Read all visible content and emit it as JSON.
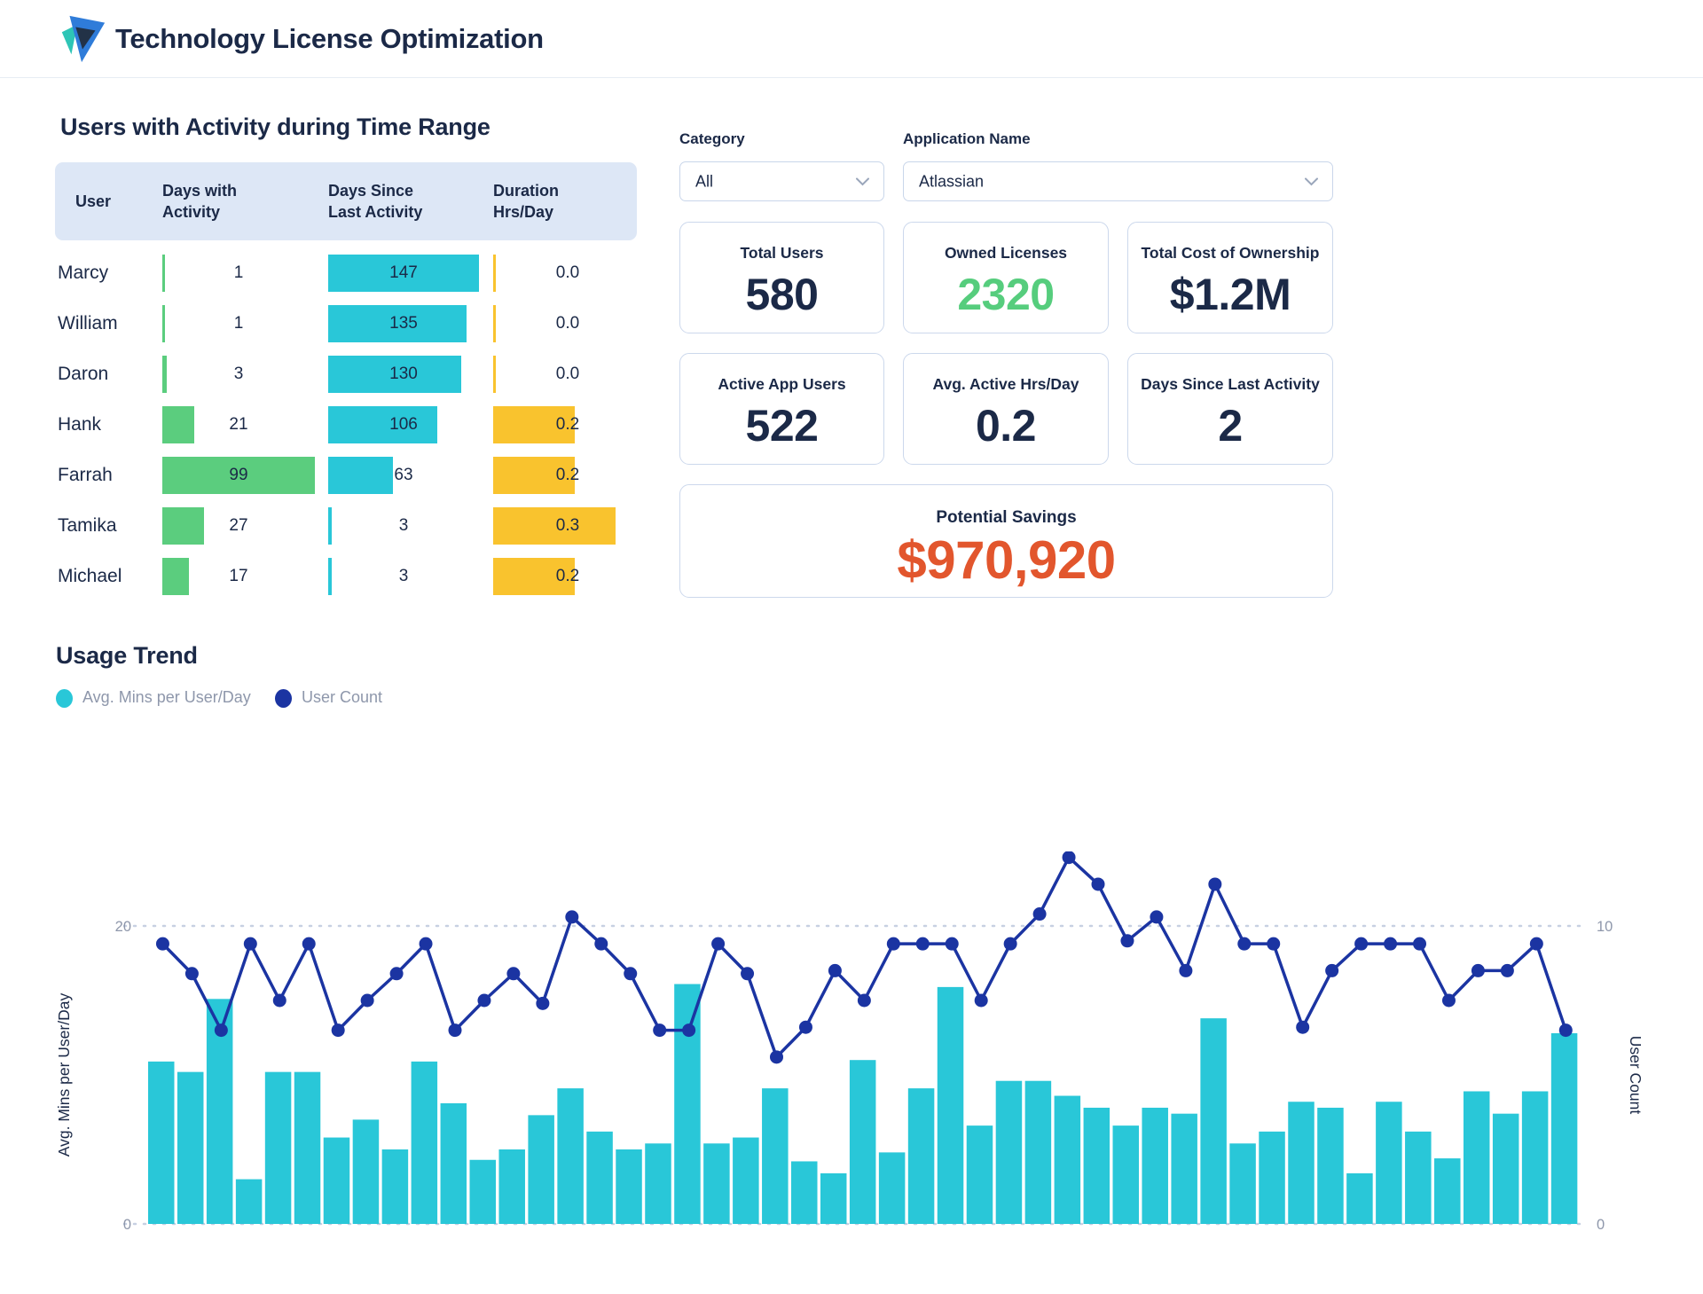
{
  "header": {
    "title": "Technology License Optimization"
  },
  "colors": {
    "navy_text": "#1b2947",
    "bar_cyan": "#29c7d8",
    "bar_green": "#5bcd7e",
    "bar_yellow": "#f9c32e",
    "line_blue": "#1b34a2",
    "green_value": "#56cd7d",
    "orange_value": "#e2562d",
    "table_header_bg": "#dde7f6",
    "card_border": "#ccd8ec",
    "axis_gray": "#8e97ab",
    "grid_gray": "#c7d0e2"
  },
  "activity_table": {
    "title": "Users with Activity during Time Range",
    "columns": {
      "user": "User",
      "days_with_activity_l1": "Days with",
      "days_with_activity_l2": "Activity",
      "days_since_l1": "Days Since",
      "days_since_l2": "Last Activity",
      "duration_l1": "Duration",
      "duration_l2": "Hrs/Day"
    },
    "max": {
      "days_with_activity": 99,
      "days_since_last": 147,
      "duration": 0.3
    },
    "rows": [
      {
        "user": "Marcy",
        "days_with_activity": 1,
        "days_since_last": 147,
        "duration": "0.0"
      },
      {
        "user": "William",
        "days_with_activity": 1,
        "days_since_last": 135,
        "duration": "0.0"
      },
      {
        "user": "Daron",
        "days_with_activity": 3,
        "days_since_last": 130,
        "duration": "0.0"
      },
      {
        "user": "Hank",
        "days_with_activity": 21,
        "days_since_last": 106,
        "duration": "0.2"
      },
      {
        "user": "Farrah",
        "days_with_activity": 99,
        "days_since_last": 63,
        "duration": "0.2"
      },
      {
        "user": "Tamika",
        "days_with_activity": 27,
        "days_since_last": 3,
        "duration": "0.3"
      },
      {
        "user": "Michael",
        "days_with_activity": 17,
        "days_since_last": 3,
        "duration": "0.2"
      }
    ]
  },
  "filters": {
    "category_label": "Category",
    "category_value": "All",
    "application_label": "Application Name",
    "application_value": "Atlassian"
  },
  "kpis": [
    {
      "label": "Total Users",
      "value": "580",
      "color": "navy"
    },
    {
      "label": "Owned Licenses",
      "value": "2320",
      "color": "green"
    },
    {
      "label": "Total Cost of Ownership",
      "value": "$1.2M",
      "color": "navy"
    },
    {
      "label": "Active App Users",
      "value": "522",
      "color": "navy"
    },
    {
      "label": "Avg. Active Hrs/Day",
      "value": "0.2",
      "color": "navy"
    },
    {
      "label": "Days Since Last Activity",
      "value": "2",
      "color": "navy"
    }
  ],
  "savings": {
    "label": "Potential Savings",
    "value": "$970,920"
  },
  "chart_data": {
    "type": "bar+line",
    "title": "Usage Trend",
    "legend": [
      {
        "label": "Avg. Mins per User/Day",
        "color": "#29c7d8"
      },
      {
        "label": "User Count",
        "color": "#1b34a2"
      }
    ],
    "left_axis": {
      "label": "Avg. Mins per User/Day",
      "ticks": [
        0,
        20
      ],
      "range": [
        0,
        20
      ]
    },
    "right_axis": {
      "label": "User Count",
      "ticks": [
        0,
        10
      ],
      "range": [
        0,
        10
      ]
    },
    "grid": "dashed horizontal at 0 and max",
    "series": [
      {
        "name": "Avg. Mins per User/Day",
        "type": "bar",
        "axis": "left",
        "values": [
          10.9,
          10.2,
          15.1,
          3.0,
          10.2,
          10.2,
          5.8,
          7.0,
          5.0,
          10.9,
          8.1,
          4.3,
          5.0,
          7.3,
          9.1,
          6.2,
          5.0,
          5.4,
          16.1,
          5.4,
          5.8,
          9.1,
          4.2,
          3.4,
          11.0,
          4.8,
          9.1,
          15.9,
          6.6,
          9.6,
          9.6,
          8.6,
          7.8,
          6.6,
          7.8,
          7.4,
          13.8,
          5.4,
          6.2,
          8.2,
          7.8,
          3.4,
          8.2,
          6.2,
          4.4,
          8.9,
          7.4,
          8.9,
          12.8
        ]
      },
      {
        "name": "User Count",
        "type": "line",
        "axis": "right",
        "values": [
          9.4,
          8.4,
          6.5,
          9.4,
          7.5,
          9.4,
          6.5,
          7.5,
          8.4,
          9.4,
          6.5,
          7.5,
          8.4,
          7.4,
          10.3,
          9.4,
          8.4,
          6.5,
          6.5,
          9.4,
          8.4,
          5.6,
          6.6,
          8.5,
          7.5,
          9.4,
          9.4,
          9.4,
          7.5,
          9.4,
          10.4,
          12.3,
          11.4,
          9.5,
          10.3,
          8.5,
          11.4,
          9.4,
          9.4,
          6.6,
          8.5,
          9.4,
          9.4,
          9.4,
          7.5,
          8.5,
          8.5,
          9.4,
          6.5
        ]
      }
    ]
  }
}
